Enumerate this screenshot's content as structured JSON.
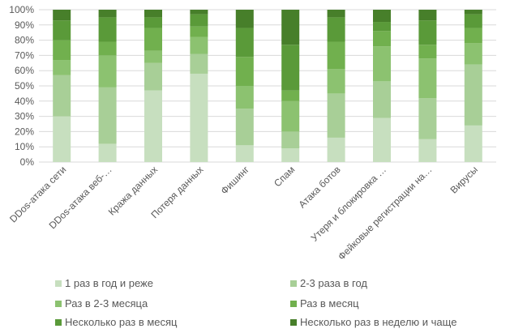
{
  "chart_data": {
    "type": "bar",
    "stacked": "percent",
    "categories": [
      "DDos-атака сети",
      "DDos-атака веб-…",
      "Кража данных",
      "Потеря данных",
      "Фишинг",
      "Спам",
      "Атака ботов",
      "Утеря и блокировка …",
      "Фейковые регистрации на…",
      "Вирусы"
    ],
    "series": [
      {
        "name": "1 раз в год и реже",
        "color": "#c7dfbf",
        "values": [
          30,
          12,
          47,
          58,
          11,
          9,
          16,
          29,
          15,
          24
        ]
      },
      {
        "name": "2-3 раза в год",
        "color": "#a8cf97",
        "values": [
          27,
          37,
          18,
          13,
          24,
          11,
          29,
          24,
          27,
          40
        ]
      },
      {
        "name": "Раз в 2-3 месяца",
        "color": "#8cc270",
        "values": [
          10,
          21,
          8,
          11,
          15,
          20,
          16,
          23,
          26,
          14
        ]
      },
      {
        "name": "Раз в месяц",
        "color": "#71b04e",
        "values": [
          13,
          9,
          15,
          7,
          19,
          7,
          18,
          10,
          9,
          10
        ]
      },
      {
        "name": "Несколько раз в месяц",
        "color": "#5a9a39",
        "values": [
          13,
          16,
          7,
          8,
          19,
          30,
          16,
          6,
          16,
          9
        ]
      },
      {
        "name": "Несколько раз в неделю и чаще",
        "color": "#477f2a",
        "values": [
          7,
          5,
          5,
          3,
          12,
          23,
          5,
          8,
          7,
          3
        ]
      }
    ],
    "yticks": [
      "0%",
      "10%",
      "20%",
      "30%",
      "40%",
      "50%",
      "60%",
      "70%",
      "80%",
      "90%",
      "100%"
    ],
    "ylim": [
      0,
      100
    ],
    "legend_position": "bottom",
    "grid": true
  }
}
